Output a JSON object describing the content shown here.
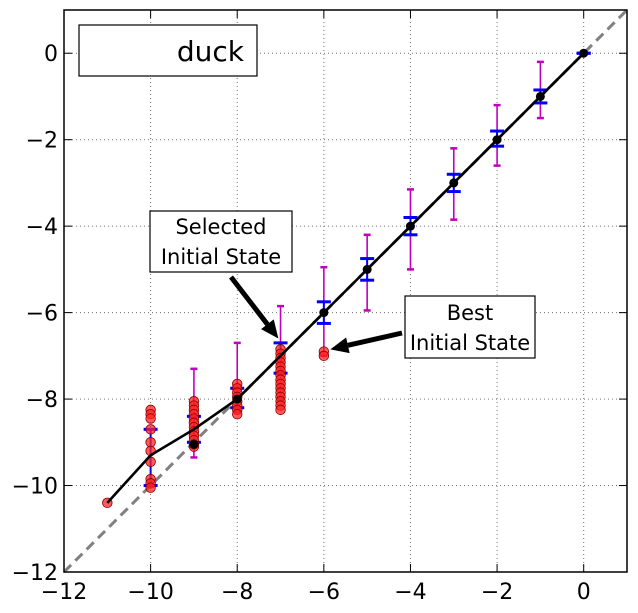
{
  "chart_data": {
    "type": "scatter",
    "title": "",
    "xlabel": "",
    "ylabel": "",
    "xlim": [
      -12,
      1
    ],
    "ylim": [
      -12,
      1
    ],
    "grid": true,
    "xticks": [
      -12,
      -10,
      -8,
      -6,
      -4,
      -2,
      0
    ],
    "yticks": [
      -12,
      -10,
      -8,
      -6,
      -4,
      -2,
      0
    ],
    "xtick_labels": [
      "−12",
      "−10",
      "−8",
      "−6",
      "−4",
      "−2",
      "0"
    ],
    "ytick_labels": [
      "−12",
      "−10",
      "−8",
      "−6",
      "−4",
      "−2",
      "0"
    ],
    "legend": {
      "label": "duck",
      "placement": "top-left"
    },
    "colors": {
      "mean_line": "#000000",
      "diagonal": "#808080",
      "blue_errorbar": "#0000ff",
      "magenta_errorbar": "#bf00bf",
      "red_points": "#ff2222"
    },
    "diagonal": {
      "style": "dashed",
      "points": [
        [
          -12,
          -12
        ],
        [
          1,
          1
        ]
      ]
    },
    "mean_line": {
      "x": [
        -11,
        -10,
        -9,
        -8,
        -7,
        -6,
        -5,
        -4,
        -3,
        -2,
        -1,
        0
      ],
      "y": [
        -10.4,
        -9.3,
        -8.7,
        -8.0,
        -7.0,
        -6.0,
        -5.0,
        -4.0,
        -3.0,
        -2.0,
        -1.0,
        0.0
      ]
    },
    "blue_errorbars": [
      {
        "x": -10,
        "lo": -10.0,
        "hi": -8.7
      },
      {
        "x": -9,
        "lo": -9.0,
        "hi": -8.4
      },
      {
        "x": -8,
        "lo": -8.2,
        "hi": -7.75
      },
      {
        "x": -7,
        "lo": -7.4,
        "hi": -6.7
      },
      {
        "x": -6,
        "lo": -6.25,
        "hi": -5.75
      },
      {
        "x": -5,
        "lo": -5.25,
        "hi": -4.75
      },
      {
        "x": -4,
        "lo": -4.2,
        "hi": -3.8
      },
      {
        "x": -3,
        "lo": -3.2,
        "hi": -2.8
      },
      {
        "x": -2,
        "lo": -2.15,
        "hi": -1.8
      },
      {
        "x": -1,
        "lo": -1.15,
        "hi": -0.85
      },
      {
        "x": 0,
        "lo": 0.0,
        "hi": 0.0
      }
    ],
    "magenta_errorbars": [
      {
        "x": -9,
        "lo": -9.35,
        "hi": -7.3
      },
      {
        "x": -8,
        "lo": -8.3,
        "hi": -6.7
      },
      {
        "x": -7,
        "lo": -8.0,
        "hi": -5.85
      },
      {
        "x": -6,
        "lo": -7.0,
        "hi": -4.95
      },
      {
        "x": -5,
        "lo": -5.95,
        "hi": -4.2
      },
      {
        "x": -4,
        "lo": -5.0,
        "hi": -3.15
      },
      {
        "x": -3,
        "lo": -3.85,
        "hi": -2.2
      },
      {
        "x": -2,
        "lo": -2.6,
        "hi": -1.2
      },
      {
        "x": -1,
        "lo": -1.5,
        "hi": -0.2
      }
    ],
    "red_points": [
      {
        "x": -11,
        "y": [
          -10.4
        ]
      },
      {
        "x": -10,
        "y": [
          -8.25,
          -8.35,
          -8.45,
          -8.7,
          -9.0,
          -9.2,
          -9.45,
          -9.85,
          -9.95,
          -10.05
        ]
      },
      {
        "x": -9,
        "y": [
          -8.05,
          -8.15,
          -8.25,
          -8.35,
          -8.45,
          -8.55,
          -8.65,
          -8.75,
          -8.85,
          -8.95,
          -9.05,
          -9.1
        ]
      },
      {
        "x": -8,
        "y": [
          -7.65,
          -7.75,
          -7.85,
          -7.95,
          -8.05,
          -8.15,
          -8.25,
          -8.35
        ]
      },
      {
        "x": -7,
        "y": [
          -6.85,
          -6.95,
          -7.05,
          -7.15,
          -7.25,
          -7.35,
          -7.45,
          -7.55,
          -7.65,
          -7.75,
          -7.85,
          -7.95,
          -8.05,
          -8.15,
          -8.25
        ]
      },
      {
        "x": -6,
        "y": [
          -6.9,
          -7.0
        ]
      }
    ],
    "black_points": [
      {
        "x": -9,
        "y": -9.05
      },
      {
        "x": -8,
        "y": -8.0
      },
      {
        "x": -6,
        "y": -6.0
      },
      {
        "x": -5,
        "y": -5.0
      },
      {
        "x": -4,
        "y": -4.0
      },
      {
        "x": -3,
        "y": -3.0
      },
      {
        "x": -2,
        "y": -2.0
      },
      {
        "x": -1,
        "y": -1.0
      },
      {
        "x": 0,
        "y": 0.0
      }
    ],
    "annotations": [
      {
        "lines": [
          "Selected",
          "Initial State"
        ],
        "target": [
          -7.05,
          -6.6
        ]
      },
      {
        "lines": [
          "Best",
          "Initial State"
        ],
        "target": [
          -5.85,
          -6.85
        ]
      }
    ]
  }
}
